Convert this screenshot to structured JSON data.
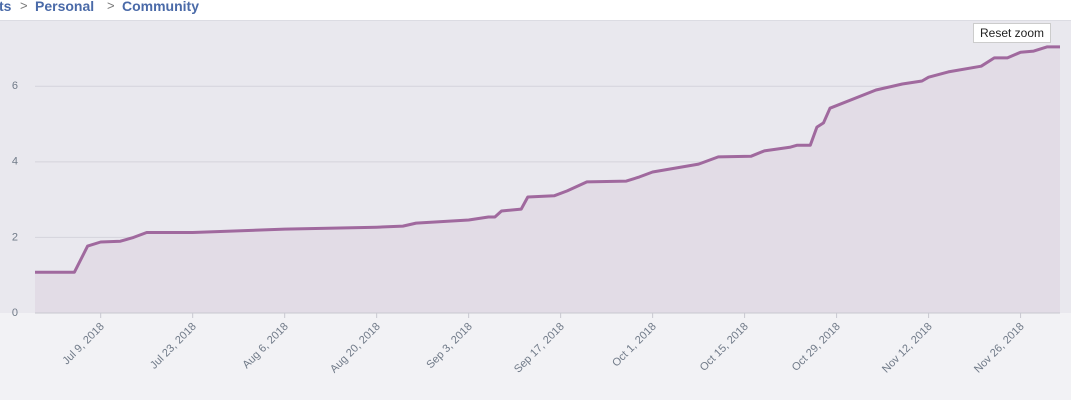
{
  "breadcrumb": [
    "ts",
    "Personal",
    "Community"
  ],
  "reset_zoom": "Reset zoom",
  "chart_data": {
    "type": "area",
    "x": [
      "2018-06-29",
      "2018-07-05",
      "2018-07-07",
      "2018-07-09",
      "2018-07-12",
      "2018-07-14",
      "2018-07-16",
      "2018-07-23",
      "2018-08-06",
      "2018-08-20",
      "2018-08-24",
      "2018-08-26",
      "2018-09-03",
      "2018-09-06",
      "2018-09-07",
      "2018-09-08",
      "2018-09-11",
      "2018-09-12",
      "2018-09-16",
      "2018-09-18",
      "2018-09-21",
      "2018-09-27",
      "2018-09-29",
      "2018-10-01",
      "2018-10-08",
      "2018-10-11",
      "2018-10-16",
      "2018-10-18",
      "2018-10-22",
      "2018-10-23",
      "2018-10-25",
      "2018-10-26",
      "2018-10-27",
      "2018-10-28",
      "2018-11-04",
      "2018-11-08",
      "2018-11-11",
      "2018-11-12",
      "2018-11-15",
      "2018-11-20",
      "2018-11-22",
      "2018-11-24",
      "2018-11-26",
      "2018-11-28",
      "2018-11-30",
      "2018-12-02"
    ],
    "values": [
      1.08,
      1.08,
      1.77,
      1.88,
      1.9,
      2.0,
      2.13,
      2.13,
      2.22,
      2.27,
      2.3,
      2.38,
      2.46,
      2.54,
      2.54,
      2.7,
      2.75,
      3.07,
      3.1,
      3.23,
      3.47,
      3.49,
      3.6,
      3.73,
      3.94,
      4.13,
      4.15,
      4.29,
      4.39,
      4.44,
      4.44,
      4.92,
      5.03,
      5.42,
      5.9,
      6.06,
      6.14,
      6.24,
      6.38,
      6.53,
      6.75,
      6.75,
      6.9,
      6.93,
      7.04,
      7.04
    ],
    "color": "#a0699e",
    "fill": "#e2dce6",
    "xlim": [
      "2018-06-29",
      "2018-12-02"
    ],
    "xticks": [
      {
        "value": "2018-07-09",
        "label": "Jul 9, 2018"
      },
      {
        "value": "2018-07-23",
        "label": "Jul 23, 2018"
      },
      {
        "value": "2018-08-06",
        "label": "Aug 6, 2018"
      },
      {
        "value": "2018-08-20",
        "label": "Aug 20, 2018"
      },
      {
        "value": "2018-09-03",
        "label": "Sep 3, 2018"
      },
      {
        "value": "2018-09-17",
        "label": "Sep 17, 2018"
      },
      {
        "value": "2018-10-01",
        "label": "Oct 1, 2018"
      },
      {
        "value": "2018-10-15",
        "label": "Oct 15, 2018"
      },
      {
        "value": "2018-10-29",
        "label": "Oct 29, 2018"
      },
      {
        "value": "2018-11-12",
        "label": "Nov 12, 2018"
      },
      {
        "value": "2018-11-26",
        "label": "Nov 26, 2018"
      }
    ],
    "ylim": [
      0,
      7.7
    ],
    "yticks": [
      0,
      2,
      4,
      6
    ],
    "grid": true
  }
}
